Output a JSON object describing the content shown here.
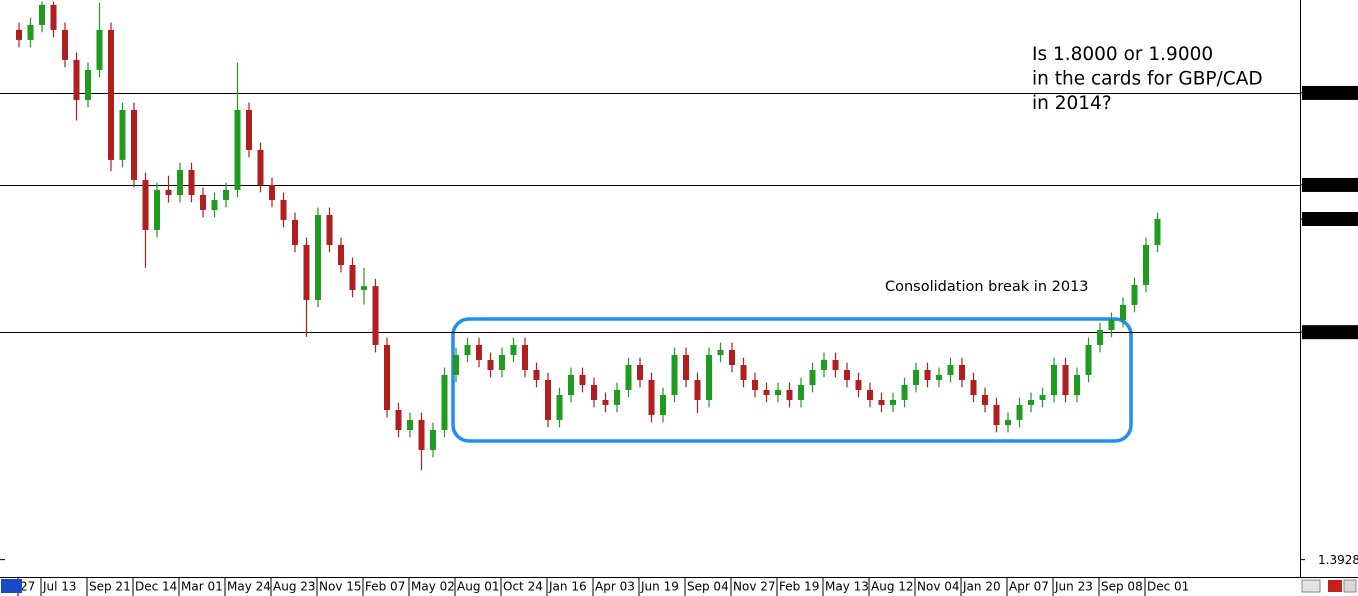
{
  "chart_data": {
    "type": "candlestick",
    "annotations": [
      "Is 1.8000 or 1.9000",
      "in the cards for GBP/CAD",
      "in 2014?"
    ],
    "box_label": "Consolidation break in 2013",
    "categories": [
      "27",
      null,
      "Jul 13",
      null,
      null,
      null,
      "Sep 21",
      null,
      null,
      null,
      "Dec 14",
      null,
      null,
      null,
      "Mar 01",
      null,
      null,
      null,
      "May 24",
      null,
      null,
      null,
      "Aug 23",
      null,
      null,
      null,
      "Nov 15",
      null,
      null,
      null,
      "Feb 07",
      null,
      null,
      null,
      "May 02",
      null,
      null,
      null,
      "Aug 01",
      null,
      null,
      null,
      "Oct 24",
      null,
      null,
      null,
      "Jan 16",
      null,
      null,
      null,
      "Apr 03",
      null,
      null,
      null,
      "Jun 19",
      null,
      null,
      null,
      "Sep 04",
      null,
      null,
      null,
      "Nov 27",
      null,
      null,
      null,
      "Feb 19",
      null,
      null,
      null,
      "May 13",
      null,
      null,
      null,
      "Aug 12",
      null,
      null,
      null,
      "Nov 04",
      null,
      null,
      null,
      "Jan 20",
      null,
      null,
      null,
      "Apr 07",
      null,
      null,
      null,
      "Jun 23",
      null,
      null,
      null,
      "Sep 08",
      null,
      null,
      null,
      "Dec 01",
      null
    ],
    "open": [
      1.9685,
      1.9576,
      1.9739,
      1.9957,
      1.9685,
      1.9359,
      1.8924,
      1.925,
      1.9685,
      1.8272,
      1.8815,
      1.8054,
      1.7511,
      1.7946,
      1.789,
      1.8163,
      1.7891,
      1.7728,
      1.7837,
      1.7946,
      1.8815,
      1.838,
      1.8,
      1.7837,
      1.762,
      1.7348,
      1.675,
      1.7674,
      1.7348,
      1.713,
      1.6859,
      1.69,
      1.6261,
      1.5554,
      1.5337,
      1.5446,
      1.512,
      1.5337,
      1.5935,
      1.6152,
      1.6261,
      1.6098,
      1.5989,
      1.6152,
      1.6261,
      1.5989,
      1.588,
      1.5446,
      1.5717,
      1.5935,
      1.5826,
      1.5663,
      1.5609,
      1.5772,
      1.6043,
      1.588,
      1.55,
      1.5717,
      1.6152,
      1.588,
      1.5663,
      1.6152,
      1.6207,
      1.6043,
      1.588,
      1.5772,
      1.5717,
      1.5772,
      1.5663,
      1.5826,
      1.5989,
      1.6098,
      1.5989,
      1.588,
      1.5772,
      1.5663,
      1.5609,
      1.5663,
      1.5826,
      1.5989,
      1.588,
      1.5935,
      1.6043,
      1.588,
      1.5717,
      1.5609,
      1.5391,
      1.5446,
      1.5609,
      1.5663,
      1.5717,
      1.6043,
      1.5717,
      1.5935,
      1.6261,
      1.6424,
      1.6533,
      1.6696,
      1.6913,
      1.7348
    ],
    "high": [
      1.9765,
      1.9819,
      1.9995,
      1.999,
      1.9765,
      1.9439,
      1.933,
      1.998,
      1.9765,
      1.8895,
      1.8895,
      1.8134,
      1.8026,
      1.81,
      1.8243,
      1.8243,
      1.7971,
      1.7917,
      1.8026,
      1.933,
      1.8895,
      1.846,
      1.808,
      1.7917,
      1.77,
      1.7428,
      1.7754,
      1.7754,
      1.7428,
      1.721,
      1.71,
      1.698,
      1.6341,
      1.5634,
      1.5526,
      1.5526,
      1.5417,
      1.6015,
      1.6232,
      1.6341,
      1.6341,
      1.6178,
      1.6232,
      1.6341,
      1.6341,
      1.6069,
      1.596,
      1.5797,
      1.6015,
      1.6015,
      1.5906,
      1.5743,
      1.5852,
      1.6123,
      1.6123,
      1.596,
      1.5797,
      1.6232,
      1.6232,
      1.596,
      1.6232,
      1.6287,
      1.6287,
      1.6123,
      1.596,
      1.5852,
      1.5852,
      1.5852,
      1.5906,
      1.6069,
      1.6178,
      1.6178,
      1.6069,
      1.596,
      1.5852,
      1.5743,
      1.5743,
      1.5906,
      1.6069,
      1.6069,
      1.6015,
      1.6123,
      1.6123,
      1.596,
      1.5797,
      1.5689,
      1.5526,
      1.5689,
      1.5743,
      1.5797,
      1.6123,
      1.6123,
      1.6015,
      1.6341,
      1.6504,
      1.6613,
      1.6776,
      1.6993,
      1.7428,
      1.77
    ],
    "low": [
      1.9496,
      1.9496,
      1.9659,
      1.9605,
      1.9279,
      1.87,
      1.8844,
      1.917,
      1.815,
      1.8192,
      1.7974,
      1.71,
      1.7431,
      1.781,
      1.781,
      1.7811,
      1.7648,
      1.7648,
      1.7757,
      1.7866,
      1.83,
      1.792,
      1.7757,
      1.754,
      1.7268,
      1.635,
      1.667,
      1.7268,
      1.705,
      1.6779,
      1.67,
      1.6181,
      1.5474,
      1.5257,
      1.5257,
      1.49,
      1.504,
      1.5257,
      1.5855,
      1.6072,
      1.6018,
      1.5909,
      1.5909,
      1.6072,
      1.5909,
      1.58,
      1.5366,
      1.5366,
      1.5637,
      1.5746,
      1.5583,
      1.5529,
      1.5529,
      1.5692,
      1.58,
      1.542,
      1.542,
      1.5637,
      1.58,
      1.552,
      1.5583,
      1.6072,
      1.5963,
      1.58,
      1.5692,
      1.5637,
      1.5637,
      1.5583,
      1.5583,
      1.5746,
      1.5909,
      1.5909,
      1.58,
      1.5692,
      1.5583,
      1.5529,
      1.5529,
      1.5583,
      1.5746,
      1.58,
      1.58,
      1.5855,
      1.58,
      1.5637,
      1.5529,
      1.5311,
      1.5311,
      1.5366,
      1.5529,
      1.5583,
      1.5637,
      1.5637,
      1.5637,
      1.5855,
      1.6181,
      1.6344,
      1.6453,
      1.6616,
      1.6833,
      1.7268
    ],
    "close": [
      1.9576,
      1.9739,
      1.9957,
      1.9685,
      1.9359,
      1.8924,
      1.925,
      1.9685,
      1.8272,
      1.8815,
      1.8054,
      1.7511,
      1.7946,
      1.789,
      1.8163,
      1.7891,
      1.7728,
      1.7837,
      1.7946,
      1.8815,
      1.838,
      1.8,
      1.7837,
      1.762,
      1.7348,
      1.675,
      1.7674,
      1.7348,
      1.713,
      1.6859,
      1.69,
      1.6261,
      1.5554,
      1.5337,
      1.5446,
      1.512,
      1.5337,
      1.5935,
      1.6152,
      1.6261,
      1.6098,
      1.5989,
      1.6152,
      1.6261,
      1.5989,
      1.588,
      1.5446,
      1.5717,
      1.5935,
      1.5826,
      1.5663,
      1.5609,
      1.5772,
      1.6043,
      1.588,
      1.55,
      1.5717,
      1.6152,
      1.588,
      1.5663,
      1.6152,
      1.6207,
      1.6043,
      1.588,
      1.5772,
      1.5717,
      1.5772,
      1.5663,
      1.5826,
      1.5989,
      1.6098,
      1.5989,
      1.588,
      1.5772,
      1.5663,
      1.5609,
      1.5663,
      1.5826,
      1.5989,
      1.588,
      1.5935,
      1.6043,
      1.588,
      1.5717,
      1.5609,
      1.5391,
      1.5446,
      1.5609,
      1.5663,
      1.5717,
      1.6043,
      1.5717,
      1.5935,
      1.6261,
      1.6424,
      1.6533,
      1.6696,
      1.6913,
      1.7348,
      1.763
    ],
    "up_color": "#1f9b1f",
    "down_color": "#b01e1e",
    "ylim": [
      1.375,
      2.001
    ],
    "yticks": [
      {
        "value": 1.3928,
        "label": "1.3928"
      }
    ],
    "hlines": [
      {
        "value": 1.9,
        "label": "1.9000"
      },
      {
        "value": 1.8,
        "label": "1.8000"
      },
      {
        "value": 1.64,
        "label": "1.6400"
      }
    ],
    "current_price": {
      "value": 1.763,
      "label": "1.7630"
    }
  }
}
